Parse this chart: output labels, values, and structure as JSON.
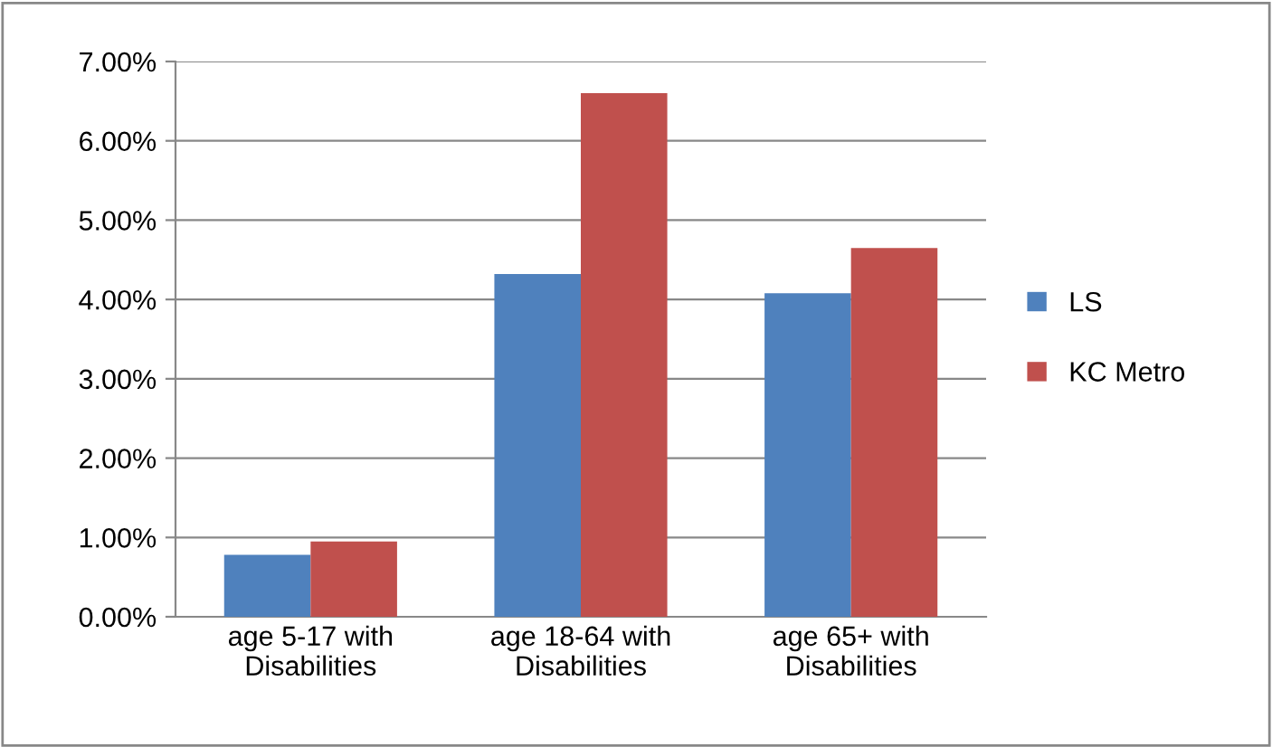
{
  "chart_data": {
    "type": "bar",
    "categories": [
      "age 5-17 with Disabilities",
      "age 18-64 with Disabilities",
      "age 65+ with Disabilities"
    ],
    "series": [
      {
        "name": "LS",
        "color": "#4f81bd",
        "values": [
          0.78,
          4.32,
          4.08
        ]
      },
      {
        "name": "KC Metro",
        "color": "#c0504d",
        "values": [
          0.95,
          6.6,
          4.65
        ]
      }
    ],
    "ylim": [
      0,
      7
    ],
    "yticks": [
      {
        "value": 0,
        "label": "0.00%"
      },
      {
        "value": 1,
        "label": "1.00%"
      },
      {
        "value": 2,
        "label": "2.00%"
      },
      {
        "value": 3,
        "label": "3.00%"
      },
      {
        "value": 4,
        "label": "4.00%"
      },
      {
        "value": 5,
        "label": "5.00%"
      },
      {
        "value": 6,
        "label": "6.00%"
      },
      {
        "value": 7,
        "label": "7.00%"
      }
    ],
    "grid": "y",
    "legend": "right"
  }
}
